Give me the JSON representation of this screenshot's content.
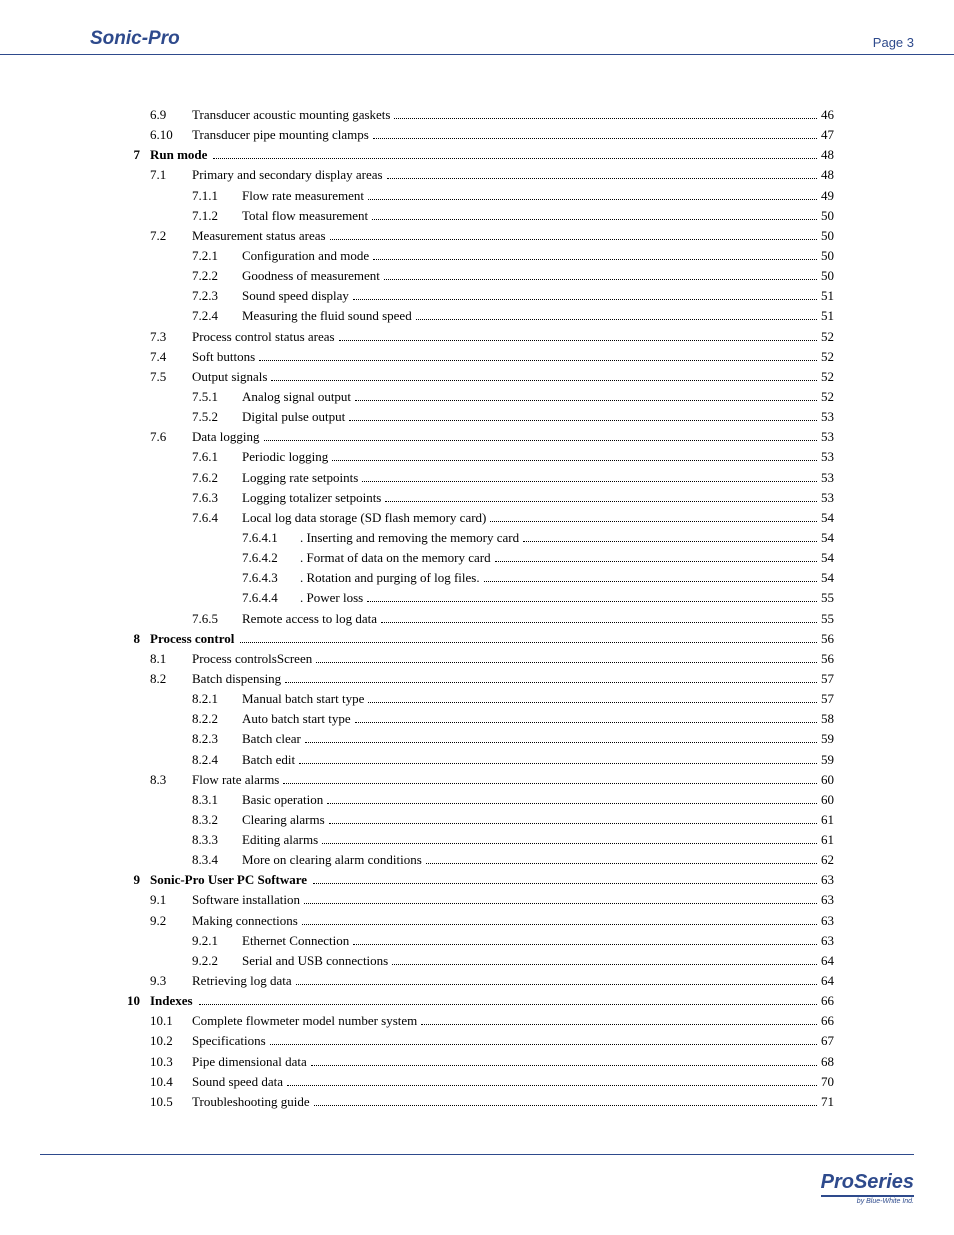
{
  "header": {
    "brand": "Sonic-Pro",
    "page_label": "Page 3"
  },
  "footer": {
    "logo": "ProSeries",
    "byline": "by Blue-White Ind."
  },
  "colors": {
    "accent": "#2e4a8c",
    "text": "#000000",
    "bg": "#ffffff"
  },
  "toc": [
    {
      "chap": "",
      "sec": "6.9",
      "sub": "",
      "ssub": "",
      "title": "Transducer acoustic mounting gaskets",
      "page": "46",
      "bold": false
    },
    {
      "chap": "",
      "sec": "6.10",
      "sub": "",
      "ssub": "",
      "title": "Transducer pipe mounting clamps",
      "page": "47",
      "bold": false
    },
    {
      "chap": "7",
      "sec": "",
      "sub": "",
      "ssub": "",
      "title": "Run mode",
      "page": "48",
      "bold": true
    },
    {
      "chap": "",
      "sec": "7.1",
      "sub": "",
      "ssub": "",
      "title": "Primary and secondary display areas",
      "page": "48",
      "bold": false
    },
    {
      "chap": "",
      "sec": "",
      "sub": "7.1.1",
      "ssub": "",
      "title": "Flow rate measurement",
      "page": "49",
      "bold": false
    },
    {
      "chap": "",
      "sec": "",
      "sub": "7.1.2",
      "ssub": "",
      "title": "Total flow measurement",
      "page": "50",
      "bold": false
    },
    {
      "chap": "",
      "sec": "7.2",
      "sub": "",
      "ssub": "",
      "title": "Measurement status areas",
      "page": "50",
      "bold": false
    },
    {
      "chap": "",
      "sec": "",
      "sub": "7.2.1",
      "ssub": "",
      "title": "Configuration and mode",
      "page": "50",
      "bold": false
    },
    {
      "chap": "",
      "sec": "",
      "sub": "7.2.2",
      "ssub": "",
      "title": "Goodness of measurement",
      "page": "50",
      "bold": false
    },
    {
      "chap": "",
      "sec": "",
      "sub": "7.2.3",
      "ssub": "",
      "title": "Sound speed display",
      "page": "51",
      "bold": false
    },
    {
      "chap": "",
      "sec": "",
      "sub": "7.2.4",
      "ssub": "",
      "title": "Measuring the fluid sound speed",
      "page": "51",
      "bold": false
    },
    {
      "chap": "",
      "sec": "7.3",
      "sub": "",
      "ssub": "",
      "title": "Process control status areas",
      "page": "52",
      "bold": false
    },
    {
      "chap": "",
      "sec": "7.4",
      "sub": "",
      "ssub": "",
      "title": "Soft buttons",
      "page": "52",
      "bold": false
    },
    {
      "chap": "",
      "sec": "7.5",
      "sub": "",
      "ssub": "",
      "title": "Output signals",
      "page": "52",
      "bold": false
    },
    {
      "chap": "",
      "sec": "",
      "sub": "7.5.1",
      "ssub": "",
      "title": "Analog signal output",
      "page": "52",
      "bold": false
    },
    {
      "chap": "",
      "sec": "",
      "sub": "7.5.2",
      "ssub": "",
      "title": "Digital pulse output",
      "page": "53",
      "bold": false
    },
    {
      "chap": "",
      "sec": "7.6",
      "sub": "",
      "ssub": "",
      "title": "Data logging",
      "page": "53",
      "bold": false
    },
    {
      "chap": "",
      "sec": "",
      "sub": "7.6.1",
      "ssub": "",
      "title": "Periodic logging",
      "page": "53",
      "bold": false
    },
    {
      "chap": "",
      "sec": "",
      "sub": "7.6.2",
      "ssub": "",
      "title": "Logging rate setpoints",
      "page": "53",
      "bold": false
    },
    {
      "chap": "",
      "sec": "",
      "sub": "7.6.3",
      "ssub": "",
      "title": "Logging totalizer setpoints",
      "page": "53",
      "bold": false
    },
    {
      "chap": "",
      "sec": "",
      "sub": "7.6.4",
      "ssub": "",
      "title": "Local log data storage (SD flash memory card)",
      "page": "54",
      "bold": false
    },
    {
      "chap": "",
      "sec": "",
      "sub": "",
      "ssub": "7.6.4.1",
      "title": ". Inserting and removing the memory card",
      "page": "54",
      "bold": false
    },
    {
      "chap": "",
      "sec": "",
      "sub": "",
      "ssub": "7.6.4.2",
      "title": ". Format of data on the memory card",
      "page": "54",
      "bold": false
    },
    {
      "chap": "",
      "sec": "",
      "sub": "",
      "ssub": "7.6.4.3",
      "title": ". Rotation and purging of log files.",
      "page": "54",
      "bold": false
    },
    {
      "chap": "",
      "sec": "",
      "sub": "",
      "ssub": "7.6.4.4",
      "title": ". Power loss",
      "page": "55",
      "bold": false
    },
    {
      "chap": "",
      "sec": "",
      "sub": "7.6.5",
      "ssub": "",
      "title": "Remote access to log data",
      "page": "55",
      "bold": false
    },
    {
      "chap": "8",
      "sec": "",
      "sub": "",
      "ssub": "",
      "title": "Process control",
      "page": "56",
      "bold": true
    },
    {
      "chap": "",
      "sec": "8.1",
      "sub": "",
      "ssub": "",
      "title": "Process controlsScreen",
      "page": "56",
      "bold": false
    },
    {
      "chap": "",
      "sec": "8.2",
      "sub": "",
      "ssub": "",
      "title": "Batch dispensing",
      "page": "57",
      "bold": false
    },
    {
      "chap": "",
      "sec": "",
      "sub": "8.2.1",
      "ssub": "",
      "title": "Manual batch start type",
      "page": "57",
      "bold": false
    },
    {
      "chap": "",
      "sec": "",
      "sub": "8.2.2",
      "ssub": "",
      "title": "Auto batch start type",
      "page": "58",
      "bold": false
    },
    {
      "chap": "",
      "sec": "",
      "sub": "8.2.3",
      "ssub": "",
      "title": "Batch clear",
      "page": "59",
      "bold": false
    },
    {
      "chap": "",
      "sec": "",
      "sub": "8.2.4",
      "ssub": "",
      "title": "Batch edit",
      "page": "59",
      "bold": false
    },
    {
      "chap": "",
      "sec": "8.3",
      "sub": "",
      "ssub": "",
      "title": "Flow rate alarms",
      "page": "60",
      "bold": false
    },
    {
      "chap": "",
      "sec": "",
      "sub": "8.3.1",
      "ssub": "",
      "title": "Basic operation",
      "page": "60",
      "bold": false
    },
    {
      "chap": "",
      "sec": "",
      "sub": "8.3.2",
      "ssub": "",
      "title": "Clearing alarms",
      "page": "61",
      "bold": false
    },
    {
      "chap": "",
      "sec": "",
      "sub": "8.3.3",
      "ssub": "",
      "title": "Editing alarms",
      "page": "61",
      "bold": false
    },
    {
      "chap": "",
      "sec": "",
      "sub": "8.3.4",
      "ssub": "",
      "title": "More on clearing alarm conditions",
      "page": "62",
      "bold": false
    },
    {
      "chap": "9",
      "sec": "",
      "sub": "",
      "ssub": "",
      "title": "Sonic-Pro User PC Software",
      "page": "63",
      "bold": true
    },
    {
      "chap": "",
      "sec": "9.1",
      "sub": "",
      "ssub": "",
      "title": "Software installation",
      "page": "63",
      "bold": false
    },
    {
      "chap": "",
      "sec": "9.2",
      "sub": "",
      "ssub": "",
      "title": "Making connections",
      "page": "63",
      "bold": false
    },
    {
      "chap": "",
      "sec": "",
      "sub": "9.2.1",
      "ssub": "",
      "title": "Ethernet Connection",
      "page": "63",
      "bold": false
    },
    {
      "chap": "",
      "sec": "",
      "sub": "9.2.2",
      "ssub": "",
      "title": "Serial and USB connections",
      "page": "64",
      "bold": false
    },
    {
      "chap": "",
      "sec": "9.3",
      "sub": "",
      "ssub": "",
      "title": "Retrieving log data",
      "page": "64",
      "bold": false
    },
    {
      "chap": "10",
      "sec": "",
      "sub": "",
      "ssub": "",
      "title": "Indexes",
      "page": "66",
      "bold": true
    },
    {
      "chap": "",
      "sec": "10.1",
      "sub": "",
      "ssub": "",
      "title": "Complete flowmeter model number system",
      "page": "66",
      "bold": false
    },
    {
      "chap": "",
      "sec": "10.2",
      "sub": "",
      "ssub": "",
      "title": "Specifications",
      "page": "67",
      "bold": false
    },
    {
      "chap": "",
      "sec": "10.3",
      "sub": "",
      "ssub": "",
      "title": "Pipe dimensional data",
      "page": "68",
      "bold": false
    },
    {
      "chap": "",
      "sec": "10.4",
      "sub": "",
      "ssub": "",
      "title": "Sound speed data",
      "page": "70",
      "bold": false
    },
    {
      "chap": "",
      "sec": "10.5",
      "sub": "",
      "ssub": "",
      "title": "Troubleshooting guide",
      "page": "71",
      "bold": false
    }
  ]
}
